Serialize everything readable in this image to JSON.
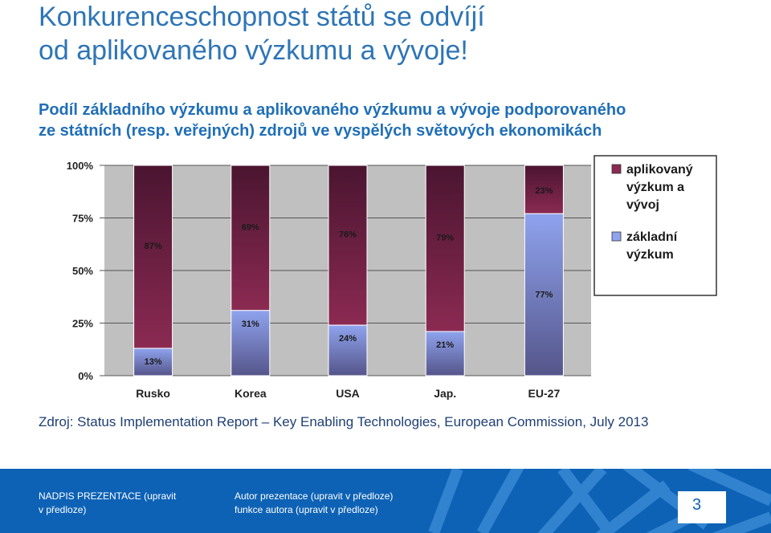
{
  "slide": {
    "title_line1": "Konkurenceschopnost států se odvíjí",
    "title_line2": "od aplikovaného výzkumu a vývoje!",
    "subtitle_line1": "Podíl základního výzkumu a aplikovaného výzkumu a vývoje podporovaného",
    "subtitle_line2": "ze státních (resp. veřejných) zdrojů ve vyspělých světových ekonomikách",
    "source": "Zdroj: Status Implementation Report – Key Enabling Technologies, European Commission, July  2013"
  },
  "footer": {
    "left_line1": "NADPIS PREZENTACE (upravit",
    "left_line2": "v předloze)",
    "mid_line1": "Autor prezentace (upravit v  předloze)",
    "mid_line2": "funkce autora (upravit v  předloze)",
    "page_number": "3"
  },
  "colors": {
    "title": "#2e75b6",
    "applied": "#8b2a52",
    "basic": "#8fa3ee",
    "plot_bg": "#c0c0c0",
    "footer_bg": "#0d62b5"
  },
  "chart_data": {
    "type": "bar",
    "stacked": true,
    "categories": [
      "Rusko",
      "Korea",
      "USA",
      "Jap.",
      "EU-27"
    ],
    "series": [
      {
        "name": "základní výzkum",
        "values": [
          13,
          31,
          24,
          21,
          77
        ],
        "labels": [
          "13%",
          "31%",
          "24%",
          "21%",
          "77%"
        ],
        "color": "#8fa3ee"
      },
      {
        "name": "aplikovaný výzkum a vývoj",
        "values": [
          87,
          69,
          76,
          79,
          23
        ],
        "labels": [
          "87%",
          "69%",
          "76%",
          "79%",
          "23%"
        ],
        "color": "#8b2a52"
      }
    ],
    "y_ticks": [
      "0%",
      "25%",
      "50%",
      "75%",
      "100%"
    ],
    "ylim": [
      0,
      100
    ],
    "legend": [
      "aplikovaný\nvýzkum a\nvývoj",
      "základní\nvýzkum"
    ],
    "legend_position": "right",
    "grid": true
  }
}
